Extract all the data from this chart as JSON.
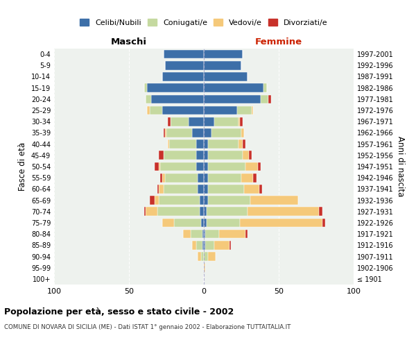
{
  "age_groups": [
    "100+",
    "95-99",
    "90-94",
    "85-89",
    "80-84",
    "75-79",
    "70-74",
    "65-69",
    "60-64",
    "55-59",
    "50-54",
    "45-49",
    "40-44",
    "35-39",
    "30-34",
    "25-29",
    "20-24",
    "15-19",
    "10-14",
    "5-9",
    "0-4"
  ],
  "birth_years": [
    "≤ 1901",
    "1902-1906",
    "1907-1911",
    "1912-1916",
    "1917-1921",
    "1922-1926",
    "1927-1931",
    "1932-1936",
    "1937-1941",
    "1942-1946",
    "1947-1951",
    "1952-1956",
    "1957-1961",
    "1962-1966",
    "1967-1971",
    "1972-1976",
    "1977-1981",
    "1982-1986",
    "1987-1991",
    "1992-1996",
    "1997-2001"
  ],
  "colors": {
    "celibi": "#3d6fa8",
    "coniugati": "#c5d9a0",
    "vedovi": "#f5c97a",
    "divorziati": "#c8312a"
  },
  "males": {
    "celibi": [
      0,
      0,
      0,
      1,
      1,
      2,
      3,
      3,
      4,
      4,
      5,
      5,
      5,
      8,
      10,
      28,
      35,
      38,
      28,
      26,
      27
    ],
    "coniugati": [
      0,
      0,
      2,
      4,
      8,
      18,
      28,
      27,
      23,
      22,
      24,
      22,
      18,
      17,
      12,
      8,
      4,
      2,
      0,
      0,
      0
    ],
    "vedovi": [
      0,
      0,
      2,
      3,
      5,
      8,
      8,
      3,
      3,
      2,
      1,
      0,
      1,
      1,
      0,
      2,
      0,
      0,
      0,
      0,
      0
    ],
    "divorziati": [
      0,
      0,
      0,
      0,
      0,
      0,
      1,
      3,
      1,
      1,
      3,
      3,
      0,
      1,
      2,
      0,
      0,
      0,
      0,
      0,
      0
    ]
  },
  "females": {
    "celibi": [
      0,
      0,
      0,
      1,
      1,
      2,
      2,
      3,
      3,
      3,
      3,
      3,
      3,
      5,
      7,
      22,
      38,
      40,
      29,
      25,
      26
    ],
    "coniugati": [
      0,
      0,
      3,
      6,
      9,
      22,
      27,
      28,
      24,
      22,
      25,
      23,
      20,
      20,
      16,
      10,
      5,
      2,
      0,
      0,
      0
    ],
    "vedovi": [
      0,
      1,
      5,
      10,
      18,
      55,
      48,
      32,
      10,
      8,
      8,
      4,
      3,
      2,
      1,
      1,
      0,
      0,
      0,
      0,
      0
    ],
    "divorziati": [
      0,
      0,
      0,
      1,
      1,
      2,
      2,
      0,
      2,
      2,
      2,
      2,
      2,
      0,
      2,
      0,
      2,
      0,
      0,
      0,
      0
    ]
  },
  "title": "Popolazione per età, sesso e stato civile - 2002",
  "subtitle": "COMUNE DI NOVARA DI SICILIA (ME) - Dati ISTAT 1° gennaio 2002 - Elaborazione TUTTAITALIA.IT",
  "xlabel_left": "Maschi",
  "xlabel_right": "Femmine",
  "ylabel_left": "Fasce di età",
  "ylabel_right": "Anni di nascita",
  "xlim": 100,
  "legend_labels": [
    "Celibi/Nubili",
    "Coniugati/e",
    "Vedovi/e",
    "Divorziati/e"
  ],
  "background_color": "#eef2ee"
}
